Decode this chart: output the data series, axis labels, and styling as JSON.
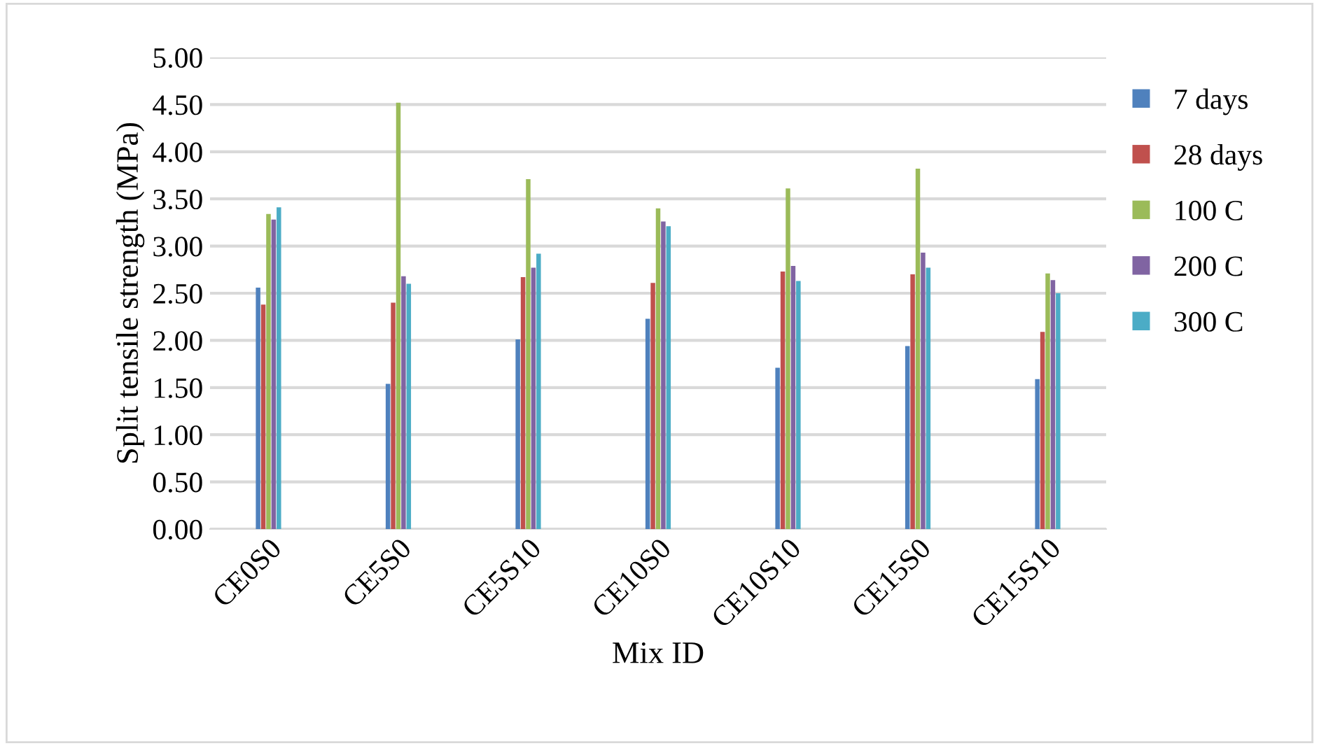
{
  "chart_data": {
    "type": "bar",
    "xlabel": "Mix ID",
    "ylabel": "Split tensile strength (MPa)",
    "categories": [
      "CE0S0",
      "CE5S0",
      "CE5S10",
      "CE10S0",
      "CE10S10",
      "CE15S0",
      "CE15S10"
    ],
    "series": [
      {
        "name": "7 days",
        "color": "#4f81bd",
        "values": [
          2.56,
          1.54,
          2.01,
          2.23,
          1.71,
          1.94,
          1.59
        ]
      },
      {
        "name": "28 days",
        "color": "#c0504d",
        "values": [
          2.38,
          2.4,
          2.67,
          2.61,
          2.73,
          2.7,
          2.09
        ]
      },
      {
        "name": "100 C",
        "color": "#9bbb59",
        "values": [
          3.34,
          4.52,
          3.71,
          3.4,
          3.61,
          3.82,
          2.71
        ]
      },
      {
        "name": "200 C",
        "color": "#8064a2",
        "values": [
          3.28,
          2.68,
          2.77,
          3.26,
          2.79,
          2.93,
          2.64
        ]
      },
      {
        "name": "300 C",
        "color": "#4bacc6",
        "values": [
          3.41,
          2.6,
          2.92,
          3.21,
          2.63,
          2.77,
          2.5
        ]
      }
    ],
    "ylim": [
      0,
      5
    ],
    "yticks": [
      {
        "value": 0,
        "label": "0.00"
      },
      {
        "value": 0.5,
        "label": "0.50"
      },
      {
        "value": 1,
        "label": "1.00"
      },
      {
        "value": 1.5,
        "label": "1.50"
      },
      {
        "value": 2,
        "label": "2.00"
      },
      {
        "value": 2.5,
        "label": "2.50"
      },
      {
        "value": 3,
        "label": "3.00"
      },
      {
        "value": 3.5,
        "label": "3.50"
      },
      {
        "value": 4,
        "label": "4.00"
      },
      {
        "value": 4.5,
        "label": "4.50"
      },
      {
        "value": 5,
        "label": "5.00"
      }
    ],
    "grid": "y",
    "legend": "right"
  }
}
